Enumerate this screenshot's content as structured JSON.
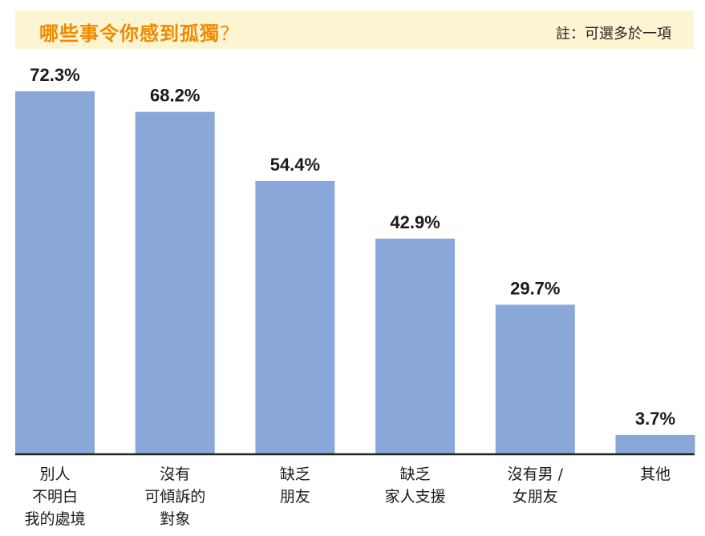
{
  "header": {
    "title": "哪些事令你感到孤獨",
    "title_qmark": "？",
    "note": "註：可選多於一項"
  },
  "colors": {
    "bar": "#89a7d8",
    "title": "#f08a00",
    "header_bg": "#fdf5d2"
  },
  "chart_data": {
    "type": "bar",
    "categories": [
      [
        "別人",
        "不明白",
        "我的處境"
      ],
      [
        "沒有",
        "可傾訴的",
        "對象"
      ],
      [
        "缺乏",
        "朋友"
      ],
      [
        "缺乏",
        "家人支援"
      ],
      [
        "沒有男 /",
        "女朋友"
      ],
      [
        "其他"
      ]
    ],
    "values": [
      72.3,
      68.2,
      54.4,
      42.9,
      29.7,
      3.7
    ],
    "value_labels": [
      "72.3%",
      "68.2%",
      "54.4%",
      "42.9%",
      "29.7%",
      "3.7%"
    ],
    "ylim": [
      0,
      72.3
    ],
    "grid": false,
    "legend": "none"
  }
}
